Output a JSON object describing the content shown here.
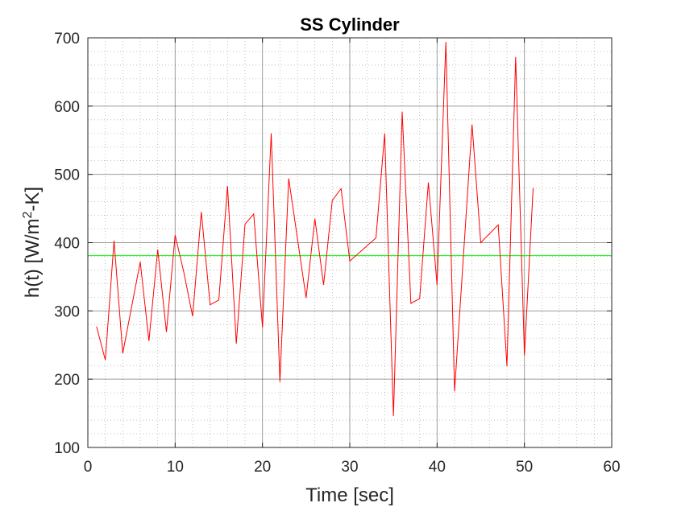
{
  "chart_data": {
    "type": "line",
    "title": "SS Cylinder",
    "xlabel": "Time [sec]",
    "ylabel_parts": {
      "prefix": "h(t) [W/m",
      "superscript": "2",
      "suffix": "-K]"
    },
    "xlim": [
      0,
      60
    ],
    "ylim": [
      100,
      700
    ],
    "xticks": [
      0,
      10,
      20,
      30,
      40,
      50,
      60
    ],
    "yticks": [
      100,
      200,
      300,
      400,
      500,
      600,
      700
    ],
    "grid": true,
    "minor_grid": true,
    "series": [
      {
        "color": "#ff0000",
        "x": [
          1,
          2,
          3,
          4,
          6,
          7,
          8,
          9,
          10,
          11,
          12,
          13,
          14,
          15,
          16,
          17,
          18,
          19,
          20,
          21,
          22,
          23,
          25,
          26,
          27,
          28,
          29,
          30,
          33,
          34,
          35,
          36,
          37,
          38,
          39,
          40,
          41,
          42,
          44,
          45,
          47,
          48,
          49,
          50,
          51
        ],
        "y": [
          277,
          228,
          403,
          238,
          372,
          256,
          390,
          269,
          411,
          356,
          292,
          445,
          309,
          316,
          483,
          252,
          427,
          442,
          276,
          560,
          196,
          494,
          319,
          435,
          338,
          462,
          479,
          373,
          407,
          560,
          146,
          592,
          311,
          318,
          488,
          338,
          694,
          182,
          573,
          400,
          426,
          219,
          672,
          235,
          480
        ]
      }
    ],
    "reference_lines": [
      {
        "y": 381,
        "color": "#00ff00"
      }
    ]
  },
  "colors": {
    "axes_background": "#ffffff",
    "axes_edge": "#262626",
    "major_grid": "#262626",
    "minor_grid": "#262626",
    "data_line": "#ff0000",
    "mean_line": "#00ff00"
  }
}
